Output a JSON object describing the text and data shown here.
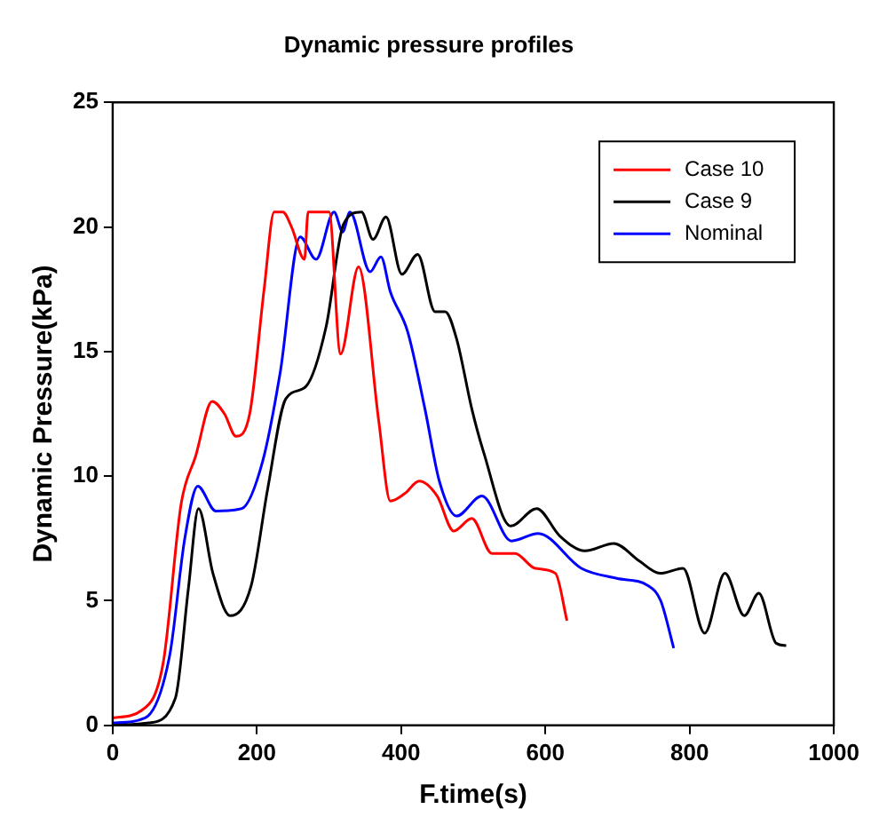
{
  "chart_data": {
    "type": "line",
    "title": "Dynamic pressure profiles",
    "xlabel": "F.time(s)",
    "ylabel": "Dynamic Pressure(kPa)",
    "xlim": [
      0,
      1000
    ],
    "xticks": [
      0,
      200,
      400,
      600,
      800,
      1000
    ],
    "ylim": [
      0,
      25
    ],
    "yticks": [
      0,
      5,
      10,
      15,
      20,
      25
    ],
    "grid": false,
    "legend": "top right",
    "marker": "none",
    "line_style": "solid",
    "series": [
      {
        "name": "Case 10",
        "color": "#ff0000",
        "x": [
          0,
          40,
          70,
          95,
          115,
          138,
          155,
          171,
          190,
          210,
          224,
          236,
          248,
          266,
          271,
          300,
          316,
          341,
          369,
          385,
          405,
          425,
          450,
          473,
          498,
          526,
          558,
          586,
          614,
          630
        ],
        "values": [
          0.3,
          0.6,
          2.5,
          8.9,
          10.8,
          13.0,
          12.5,
          11.6,
          12.5,
          17.5,
          20.6,
          20.6,
          20.0,
          18.7,
          20.6,
          20.6,
          14.9,
          18.4,
          12.2,
          9.0,
          9.3,
          9.8,
          9.2,
          7.8,
          8.3,
          6.9,
          6.9,
          6.3,
          6.1,
          4.2
        ]
      },
      {
        "name": "Case 9",
        "color": "#000000",
        "x": [
          0,
          50,
          87,
          105,
          119,
          139,
          163,
          192,
          215,
          240,
          268,
          296,
          320,
          345,
          361,
          379,
          401,
          423,
          447,
          461,
          477,
          498,
          514,
          552,
          588,
          620,
          655,
          695,
          730,
          759,
          791,
          821,
          849,
          876,
          896,
          920,
          934
        ],
        "values": [
          0,
          0.1,
          1.1,
          5.5,
          8.7,
          6.1,
          4.4,
          5.6,
          9.5,
          13.1,
          13.6,
          16.0,
          20.1,
          20.6,
          19.5,
          20.4,
          18.1,
          18.9,
          16.6,
          16.6,
          15.5,
          12.7,
          11.0,
          8.0,
          8.7,
          7.6,
          7.0,
          7.3,
          6.6,
          6.1,
          6.3,
          3.7,
          6.1,
          4.4,
          5.3,
          3.3,
          3.2
        ]
      },
      {
        "name": "Nominal",
        "color": "#0000ff",
        "x": [
          0,
          45,
          79,
          100,
          118,
          143,
          179,
          208,
          232,
          260,
          282,
          307,
          319,
          329,
          357,
          372,
          385,
          409,
          433,
          453,
          477,
          512,
          553,
          590,
          650,
          699,
          743,
          760,
          778
        ],
        "values": [
          0.1,
          0.3,
          2.8,
          7.5,
          9.6,
          8.6,
          8.7,
          10.6,
          14.1,
          19.6,
          18.7,
          20.6,
          19.8,
          20.6,
          18.2,
          18.8,
          17.4,
          15.8,
          12.7,
          9.8,
          8.4,
          9.2,
          7.4,
          7.7,
          6.3,
          5.9,
          5.6,
          5.0,
          3.1
        ]
      }
    ]
  }
}
